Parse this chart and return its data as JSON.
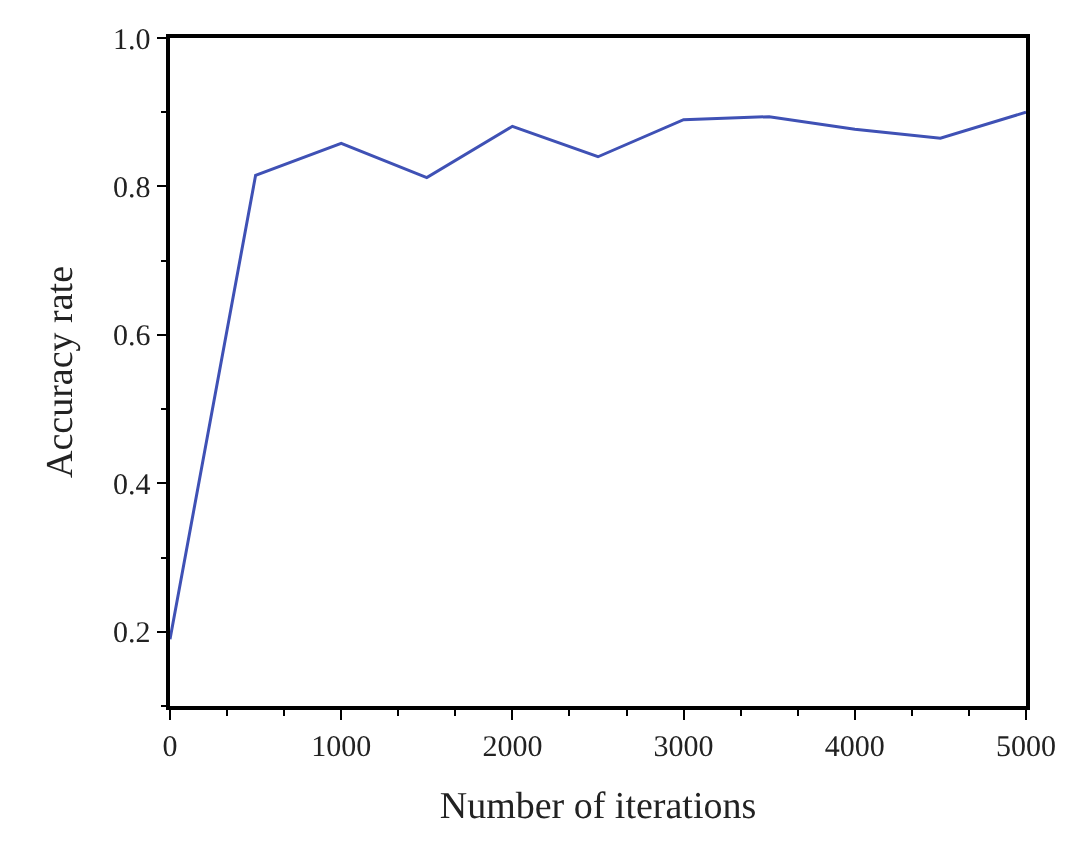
{
  "chart_data": {
    "type": "line",
    "xlabel": "Number of iterations",
    "ylabel": "Accuracy rate",
    "x": [
      0,
      500,
      1000,
      1500,
      2000,
      2500,
      3000,
      3500,
      4000,
      4500,
      5000
    ],
    "series": [
      {
        "color": "#3f51b5",
        "values": [
          0.19,
          0.815,
          0.858,
          0.812,
          0.881,
          0.84,
          0.89,
          0.894,
          0.877,
          0.865,
          0.9
        ]
      }
    ],
    "xlim": [
      0,
      5000
    ],
    "xticks": [
      0,
      1000,
      2000,
      3000,
      4000,
      5000
    ],
    "ylim": [
      0.1,
      1.0
    ],
    "yticks": [
      0.2,
      0.4,
      0.6,
      0.8,
      {
        "value": 1,
        "label": "1.0"
      }
    ],
    "marker": "none",
    "line_style": "solid"
  }
}
